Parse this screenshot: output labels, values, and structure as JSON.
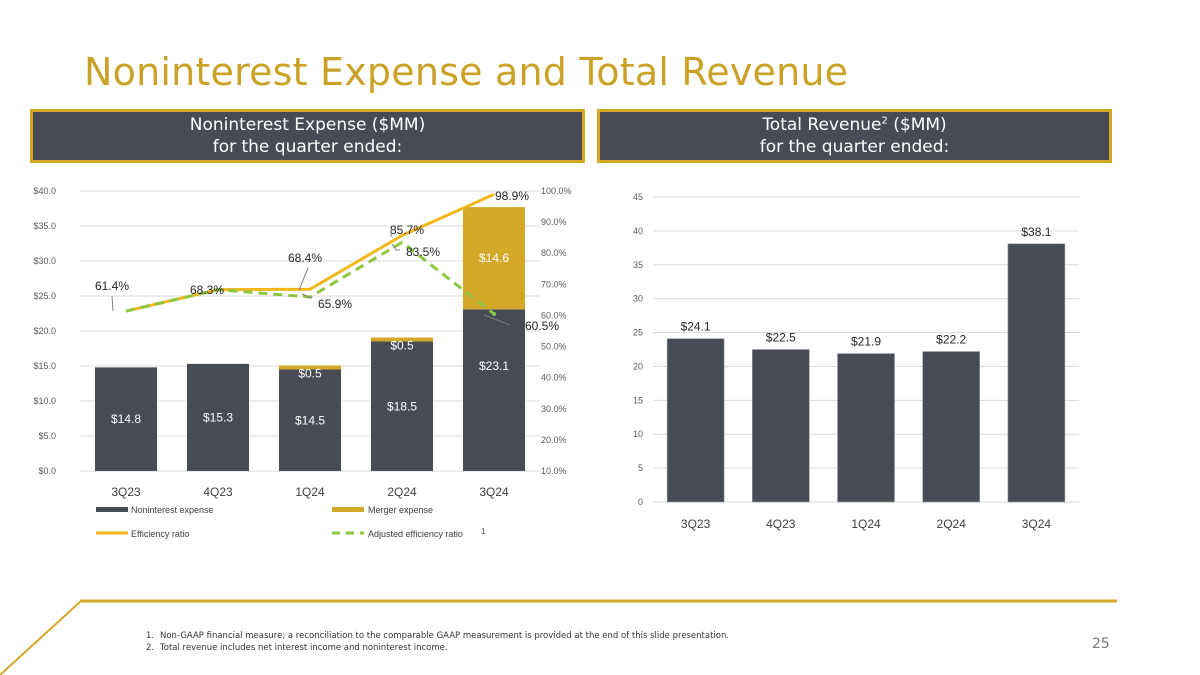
{
  "slide": {
    "title": "Noninterest Expense and Total Revenue",
    "page_number": "25",
    "brand_gold": "#D4A829",
    "brand_dark": "#474B54",
    "left_header": {
      "line1": "Noninterest Expense ($MM)",
      "line2": "for the quarter ended:"
    },
    "right_header": {
      "line1_pre": "Total Revenue",
      "line1_sup": "2",
      "line1_post": " ($MM)",
      "line2": "for the quarter ended:"
    },
    "footnotes": [
      {
        "num": "1.",
        "text": "Non-GAAP financial measure; a reconciliation to the comparable GAAP measurement is provided at the end of this slide presentation."
      },
      {
        "num": "2.",
        "text": "Total revenue includes net interest income and noninterest income."
      }
    ]
  },
  "chart_data": [
    {
      "type": "bar",
      "stacked": true,
      "title": "Noninterest Expense ($MM) for the quarter ended:",
      "categories": [
        "3Q23",
        "4Q23",
        "1Q24",
        "2Q24",
        "3Q24"
      ],
      "series": [
        {
          "name": "Noninterest expense",
          "kind": "bar",
          "color": "#474B54",
          "values": [
            14.8,
            15.3,
            14.5,
            18.5,
            23.1
          ],
          "labels": [
            "$14.8",
            "$15.3",
            "$14.5",
            "$18.5",
            "$23.1"
          ]
        },
        {
          "name": "Merger expense",
          "kind": "bar",
          "color": "#D4A829",
          "values": [
            0,
            0,
            0.5,
            0.5,
            14.6
          ],
          "labels": [
            "",
            "",
            "$0.5",
            "$0.5",
            "$14.6"
          ]
        },
        {
          "name": "Efficiency ratio",
          "kind": "line",
          "axis": "secondary",
          "color": "#F2B81B",
          "values": [
            61.4,
            68.3,
            68.4,
            85.7,
            98.9
          ],
          "labels": [
            "61.4%",
            "68.3%",
            "68.4%",
            "85.7%",
            "98.9%"
          ]
        },
        {
          "name": "Adjusted efficiency ratio",
          "legend_sup": "1",
          "kind": "line",
          "dashed": true,
          "axis": "secondary",
          "color": "#8DC63F",
          "values": [
            61.4,
            68.3,
            65.9,
            83.5,
            60.5
          ],
          "labels": [
            "",
            "",
            "65.9%",
            "83.5%",
            "60.5%"
          ]
        }
      ],
      "y_axis": {
        "min": 0,
        "max": 40,
        "step": 5,
        "tick_labels": [
          "$0.0",
          "$5.0",
          "$10.0",
          "$15.0",
          "$20.0",
          "$25.0",
          "$30.0",
          "$35.0",
          "$40.0"
        ]
      },
      "y2_axis": {
        "min": 10,
        "max": 100,
        "step": 10,
        "tick_labels": [
          "10.0%",
          "20.0%",
          "30.0%",
          "40.0%",
          "50.0%",
          "60.0%",
          "70.0%",
          "80.0%",
          "90.0%",
          "100.0%"
        ]
      },
      "grid": true,
      "legend_position": "bottom"
    },
    {
      "type": "bar",
      "title": "Total Revenue ($MM) for the quarter ended:",
      "categories": [
        "3Q23",
        "4Q23",
        "1Q24",
        "2Q24",
        "3Q24"
      ],
      "values": [
        24.1,
        22.5,
        21.9,
        22.2,
        38.1
      ],
      "labels": [
        "$24.1",
        "$22.5",
        "$21.9",
        "$22.2",
        "$38.1"
      ],
      "color": "#474B54",
      "y_axis": {
        "min": 0,
        "max": 45,
        "step": 5,
        "tick_labels": [
          "0",
          "5",
          "10",
          "15",
          "20",
          "25",
          "30",
          "35",
          "40",
          "45"
        ]
      },
      "grid": true,
      "legend_position": "none"
    }
  ]
}
